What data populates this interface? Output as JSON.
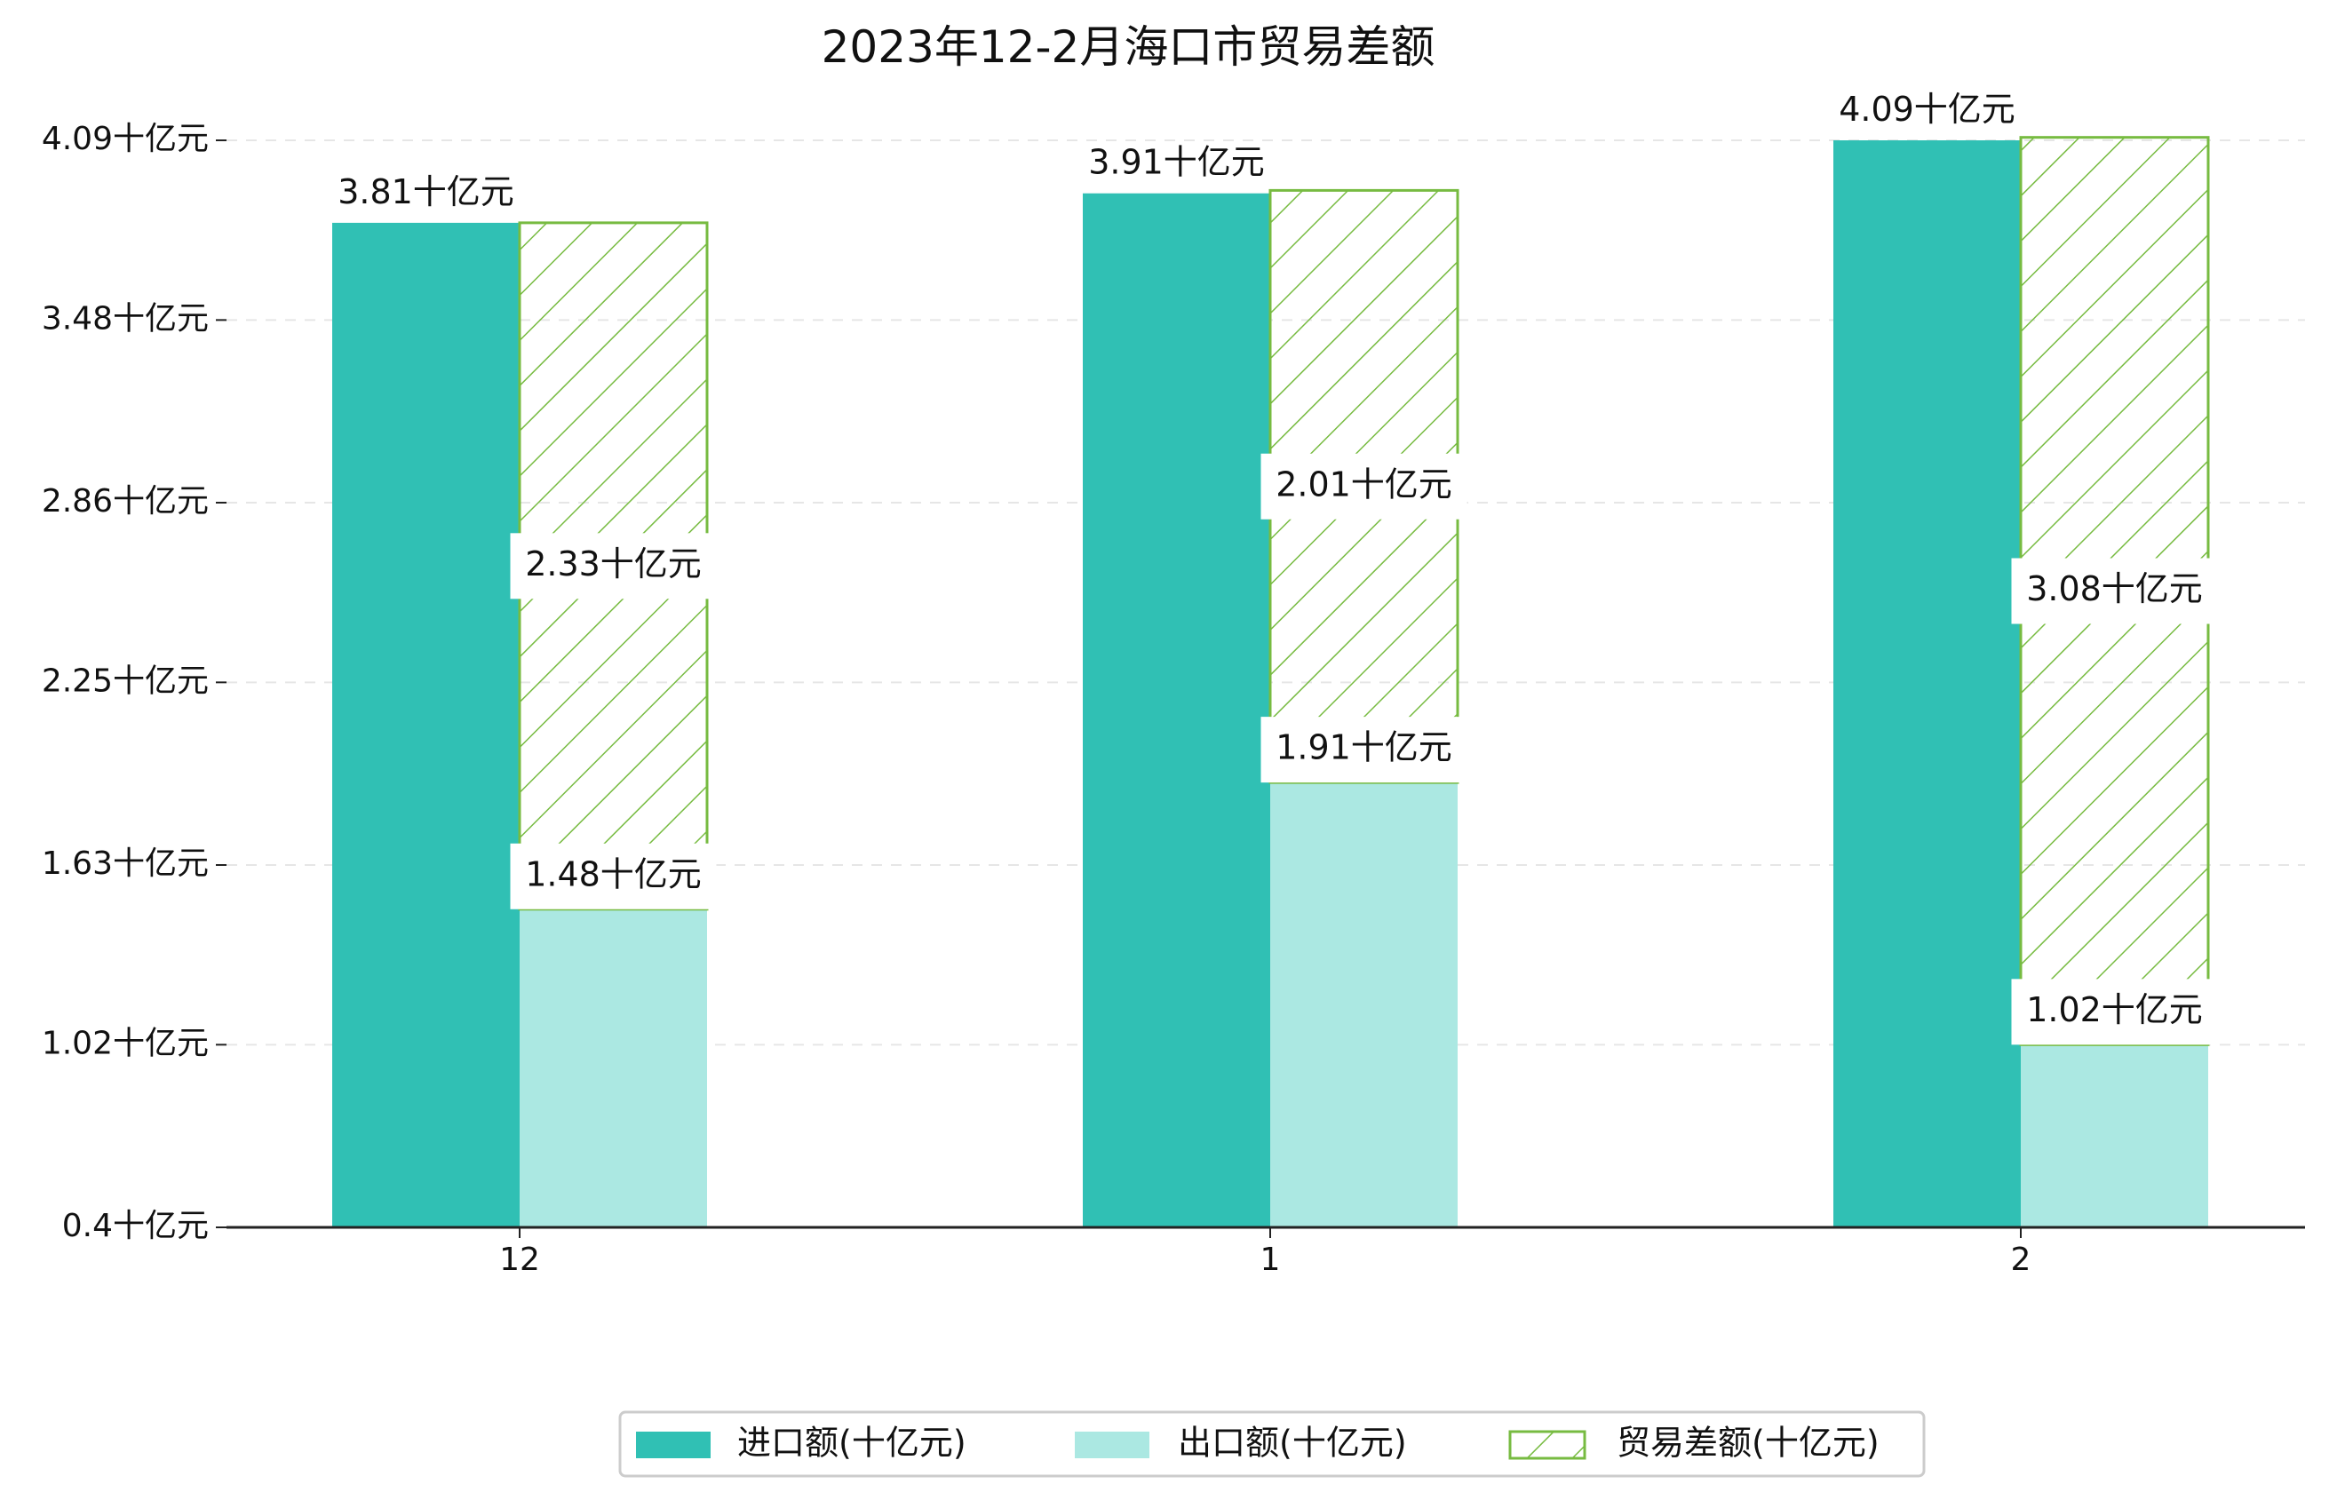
{
  "chart_data": {
    "type": "bar",
    "title": "2023年12-2月海口市贸易差额",
    "categories": [
      "12",
      "1",
      "2"
    ],
    "unit": "十亿元",
    "yticks": [
      0.4,
      1.02,
      1.63,
      2.25,
      2.86,
      3.48,
      4.09
    ],
    "ytick_labels": [
      "0.4十亿元",
      "1.02十亿元",
      "1.63十亿元",
      "2.25十亿元",
      "2.86十亿元",
      "3.48十亿元",
      "4.09十亿元"
    ],
    "ylim": [
      0.4,
      4.09
    ],
    "grid": true,
    "legend_position": "bottom-center",
    "series": [
      {
        "name": "进口额(十亿元)",
        "values": [
          3.81,
          3.91,
          4.09
        ],
        "labels": [
          "3.81十亿元",
          "3.91十亿元",
          "4.09十亿元"
        ],
        "color": "#30c0b4",
        "style": "solid"
      },
      {
        "name": "出口额(十亿元)",
        "values": [
          1.48,
          1.91,
          1.02
        ],
        "labels": [
          "1.48十亿元",
          "1.91十亿元",
          "1.02十亿元"
        ],
        "color": "#abe8e2",
        "style": "solid"
      },
      {
        "name": "贸易差额(十亿元)",
        "values": [
          2.33,
          2.01,
          3.08
        ],
        "labels": [
          "2.33十亿元",
          "2.01十亿元",
          "3.08十亿元"
        ],
        "color": "#77bb41",
        "style": "hatched-stacked-on-export"
      }
    ]
  }
}
